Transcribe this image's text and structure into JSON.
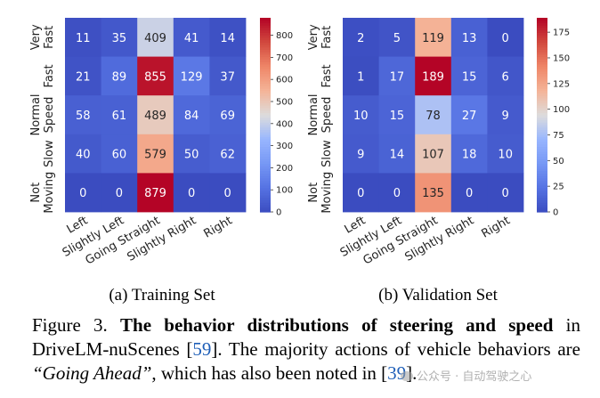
{
  "chart_data": [
    {
      "type": "heatmap",
      "subtitle": "(a) Training Set",
      "rows": [
        "Very Fast",
        "Fast",
        "Normal Speed",
        "Slow",
        "Not Moving"
      ],
      "columns": [
        "Left",
        "Slightly Left",
        "Going Straight",
        "Slightly Right",
        "Right"
      ],
      "values": [
        [
          11,
          35,
          409,
          41,
          14
        ],
        [
          21,
          89,
          855,
          129,
          37
        ],
        [
          58,
          61,
          489,
          84,
          69
        ],
        [
          40,
          60,
          579,
          50,
          62
        ],
        [
          0,
          0,
          879,
          0,
          0
        ]
      ],
      "colorbar_ticks": [
        0,
        100,
        200,
        300,
        400,
        500,
        600,
        700,
        800
      ],
      "vmin": 0,
      "vmax": 879,
      "colormap": "coolwarm"
    },
    {
      "type": "heatmap",
      "subtitle": "(b) Validation Set",
      "rows": [
        "Very Fast",
        "Fast",
        "Normal Speed",
        "Slow",
        "Not Moving"
      ],
      "columns": [
        "Left",
        "Slightly Left",
        "Going Straight",
        "Slightly Right",
        "Right"
      ],
      "values": [
        [
          2,
          5,
          119,
          13,
          0
        ],
        [
          1,
          17,
          189,
          15,
          6
        ],
        [
          10,
          15,
          78,
          27,
          9
        ],
        [
          9,
          14,
          107,
          18,
          10
        ],
        [
          0,
          0,
          135,
          0,
          0
        ]
      ],
      "colorbar_ticks": [
        0,
        25,
        50,
        75,
        100,
        125,
        150,
        175
      ],
      "vmin": 0,
      "vmax": 189,
      "colormap": "coolwarm"
    }
  ],
  "caption": {
    "label": "Figure 3.",
    "bold_title": "The behavior distributions of steering and speed",
    "text1": " in DriveLM-nuScenes [",
    "ref1": "59",
    "text2": "].  The majority actions of vehicle behaviors are ",
    "quote": "“Going Ahead”",
    "text3": ", which has also been noted in [",
    "ref2": "39",
    "text4": "]."
  },
  "watermark": "公众号 · 自动驾驶之心"
}
